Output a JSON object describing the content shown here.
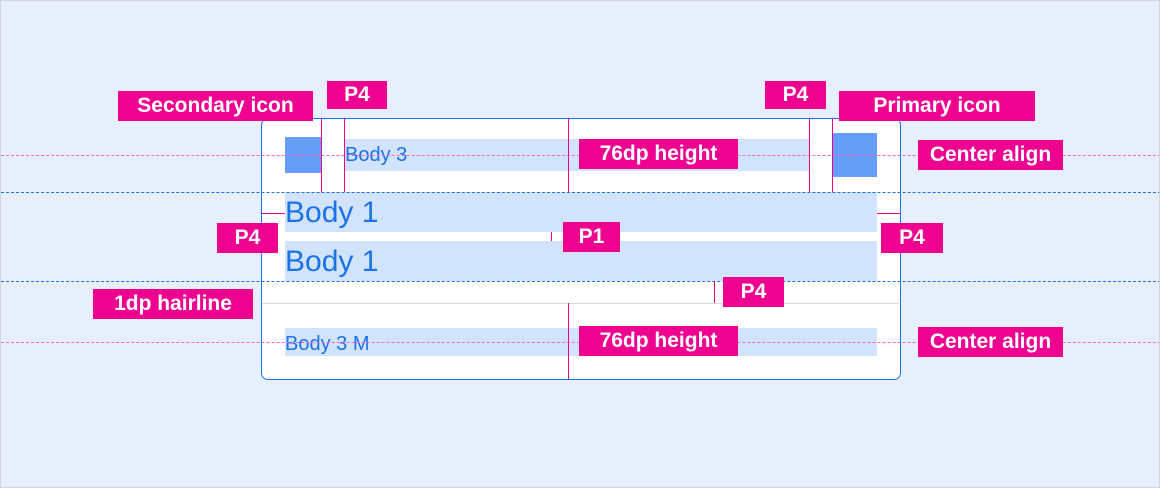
{
  "colors": {
    "accent": "#ee0290",
    "primary": "#1a73e8",
    "icon": "#669df6",
    "bar": "#d2e3fc",
    "background": "#e8effc"
  },
  "labels": {
    "secondary_icon": "Secondary icon",
    "primary_icon": "Primary icon",
    "p4": "P4",
    "p1": "P1",
    "height_76": "76dp height",
    "center_align": "Center align",
    "hairline": "1dp hairline"
  },
  "card": {
    "body3": "Body 3",
    "body1_a": "Body 1",
    "body1_b": "Body 1",
    "body3m": "Body 3 M"
  }
}
